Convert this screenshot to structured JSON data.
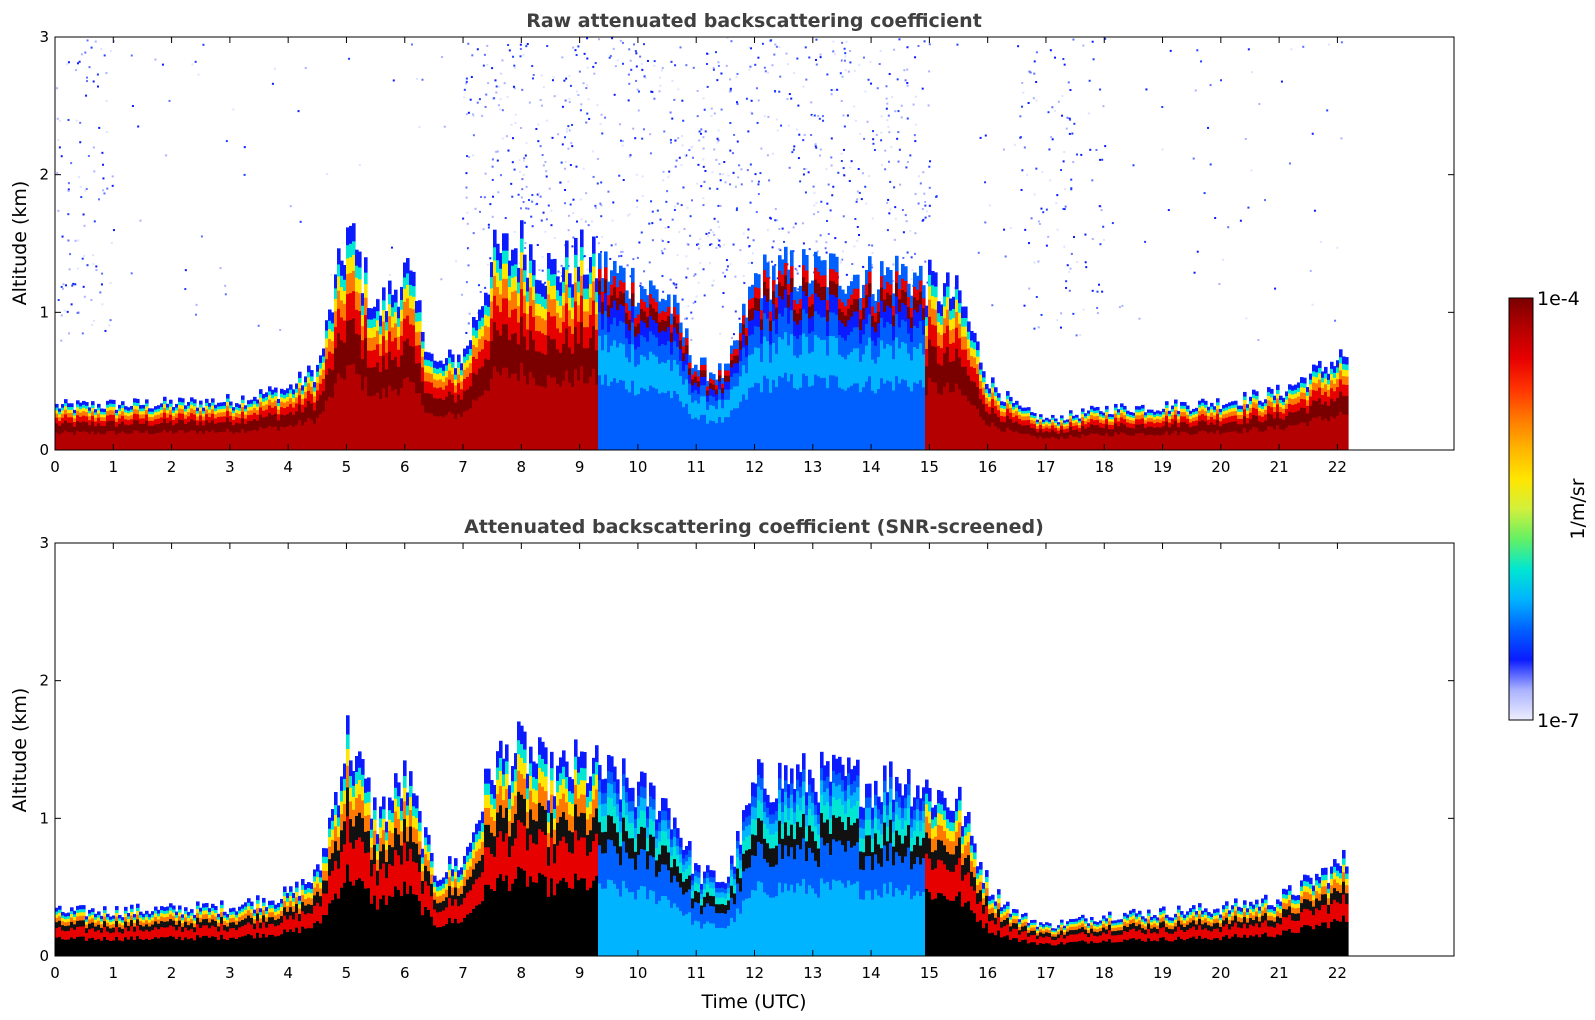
{
  "chart_data": [
    {
      "type": "heatmap",
      "title": "Raw attenuated backscattering coefficient",
      "xlabel": "",
      "ylabel": "Altitude (km)",
      "xlim": [
        0,
        24
      ],
      "ylim": [
        0,
        3
      ],
      "xticks": [
        "0",
        "1",
        "2",
        "3",
        "4",
        "5",
        "6",
        "7",
        "8",
        "9",
        "10",
        "11",
        "12",
        "13",
        "14",
        "15",
        "16",
        "17",
        "18",
        "19",
        "20",
        "21",
        "22"
      ],
      "yticks": [
        "0",
        "1",
        "2",
        "3"
      ],
      "data_end_x": 22.15,
      "profile": {
        "x": [
          0,
          1,
          2,
          3,
          4,
          4.5,
          5,
          5.5,
          6,
          6.5,
          7,
          7.5,
          8,
          8.5,
          9,
          9.5,
          10,
          10.5,
          11,
          11.5,
          12,
          12.5,
          13,
          13.5,
          14,
          14.5,
          15,
          15.5,
          16,
          16.5,
          17,
          18,
          19,
          20,
          21,
          22.15
        ],
        "layer_top_km": [
          0.32,
          0.33,
          0.34,
          0.36,
          0.45,
          0.6,
          1.6,
          1.0,
          1.3,
          0.6,
          0.7,
          1.4,
          1.5,
          1.3,
          1.4,
          1.3,
          1.2,
          1.1,
          0.6,
          0.55,
          1.25,
          1.3,
          1.3,
          1.3,
          1.25,
          1.3,
          1.2,
          1.1,
          0.5,
          0.3,
          0.22,
          0.3,
          0.32,
          0.35,
          0.42,
          0.7
        ]
      }
    },
    {
      "type": "heatmap",
      "title": "Attenuated backscattering coefficient (SNR-screened)",
      "xlabel": "Time (UTC)",
      "ylabel": "Altitude (km)",
      "xlim": [
        0,
        24
      ],
      "ylim": [
        0,
        3
      ],
      "xticks": [
        "0",
        "1",
        "2",
        "3",
        "4",
        "5",
        "6",
        "7",
        "8",
        "9",
        "10",
        "11",
        "12",
        "13",
        "14",
        "15",
        "16",
        "17",
        "18",
        "19",
        "20",
        "21",
        "22"
      ],
      "yticks": [
        "0",
        "1",
        "2",
        "3"
      ],
      "data_end_x": 22.15
    }
  ],
  "colorbar": {
    "label": "1/m/sr",
    "min_label": "1e-7",
    "max_label": "1e-4",
    "scale": "log",
    "colormap": [
      "#eeeeff",
      "#aab2ff",
      "#0a1cff",
      "#0060ff",
      "#00b4ff",
      "#00e6d2",
      "#64f064",
      "#d2f03c",
      "#ffe600",
      "#ffb400",
      "#ff7800",
      "#ff3200",
      "#e60000",
      "#b40000",
      "#7a0000"
    ]
  }
}
